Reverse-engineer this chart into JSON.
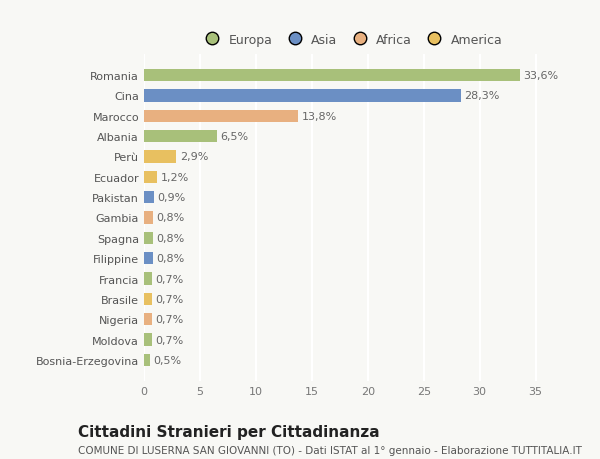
{
  "categories": [
    "Romania",
    "Cina",
    "Marocco",
    "Albania",
    "Perù",
    "Ecuador",
    "Pakistan",
    "Gambia",
    "Spagna",
    "Filippine",
    "Francia",
    "Brasile",
    "Nigeria",
    "Moldova",
    "Bosnia-Erzegovina"
  ],
  "values": [
    33.6,
    28.3,
    13.8,
    6.5,
    2.9,
    1.2,
    0.9,
    0.8,
    0.8,
    0.8,
    0.7,
    0.7,
    0.7,
    0.7,
    0.5
  ],
  "labels": [
    "33,6%",
    "28,3%",
    "13,8%",
    "6,5%",
    "2,9%",
    "1,2%",
    "0,9%",
    "0,8%",
    "0,8%",
    "0,8%",
    "0,7%",
    "0,7%",
    "0,7%",
    "0,7%",
    "0,5%"
  ],
  "colors": [
    "#a8c07a",
    "#6b8fc4",
    "#e8b080",
    "#a8c07a",
    "#e8c060",
    "#e8c060",
    "#6b8fc4",
    "#e8b080",
    "#a8c07a",
    "#6b8fc4",
    "#a8c07a",
    "#e8c060",
    "#e8b080",
    "#a8c07a",
    "#a8c07a"
  ],
  "legend_labels": [
    "Europa",
    "Asia",
    "Africa",
    "America"
  ],
  "legend_colors": [
    "#a8c07a",
    "#6b8fc4",
    "#e8b080",
    "#e8c060"
  ],
  "xlim": [
    0,
    37
  ],
  "xticks": [
    0,
    5,
    10,
    15,
    20,
    25,
    30,
    35
  ],
  "title": "Cittadini Stranieri per Cittadinanza",
  "subtitle": "COMUNE DI LUSERNA SAN GIOVANNI (TO) - Dati ISTAT al 1° gennaio - Elaborazione TUTTITALIA.IT",
  "background_color": "#f8f8f5",
  "bar_height": 0.6,
  "label_fontsize": 8,
  "tick_fontsize": 8,
  "title_fontsize": 11,
  "subtitle_fontsize": 7.5
}
